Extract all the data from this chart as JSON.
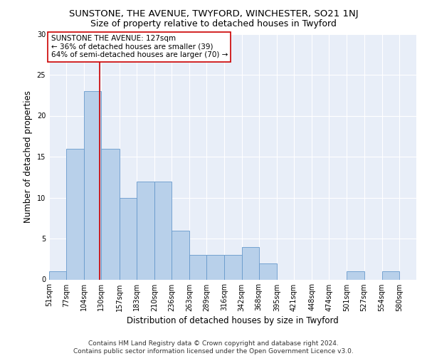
{
  "title": "SUNSTONE, THE AVENUE, TWYFORD, WINCHESTER, SO21 1NJ",
  "subtitle": "Size of property relative to detached houses in Twyford",
  "xlabel": "Distribution of detached houses by size in Twyford",
  "ylabel": "Number of detached properties",
  "bin_labels": [
    "51sqm",
    "77sqm",
    "104sqm",
    "130sqm",
    "157sqm",
    "183sqm",
    "210sqm",
    "236sqm",
    "263sqm",
    "289sqm",
    "316sqm",
    "342sqm",
    "368sqm",
    "395sqm",
    "421sqm",
    "448sqm",
    "474sqm",
    "501sqm",
    "527sqm",
    "554sqm",
    "580sqm"
  ],
  "bar_values": [
    1,
    16,
    23,
    16,
    10,
    12,
    12,
    6,
    3,
    3,
    3,
    4,
    2,
    0,
    0,
    0,
    0,
    1,
    0,
    1,
    0
  ],
  "bin_edges": [
    51,
    77,
    104,
    130,
    157,
    183,
    210,
    236,
    263,
    289,
    316,
    342,
    368,
    395,
    421,
    448,
    474,
    501,
    527,
    554,
    580
  ],
  "bar_color": "#b8d0ea",
  "bar_edge_color": "#6699cc",
  "vline_x": 127,
  "vline_color": "#cc0000",
  "annotation_text": "SUNSTONE THE AVENUE: 127sqm\n← 36% of detached houses are smaller (39)\n64% of semi-detached houses are larger (70) →",
  "annotation_box_color": "#ffffff",
  "annotation_box_edge_color": "#cc0000",
  "ylim": [
    0,
    30
  ],
  "yticks": [
    0,
    5,
    10,
    15,
    20,
    25,
    30
  ],
  "bg_color": "#e8eef8",
  "footer_line1": "Contains HM Land Registry data © Crown copyright and database right 2024.",
  "footer_line2": "Contains public sector information licensed under the Open Government Licence v3.0.",
  "title_fontsize": 9.5,
  "subtitle_fontsize": 9,
  "tick_fontsize": 7,
  "ylabel_fontsize": 8.5,
  "xlabel_fontsize": 8.5,
  "annotation_fontsize": 7.5,
  "footer_fontsize": 6.5
}
